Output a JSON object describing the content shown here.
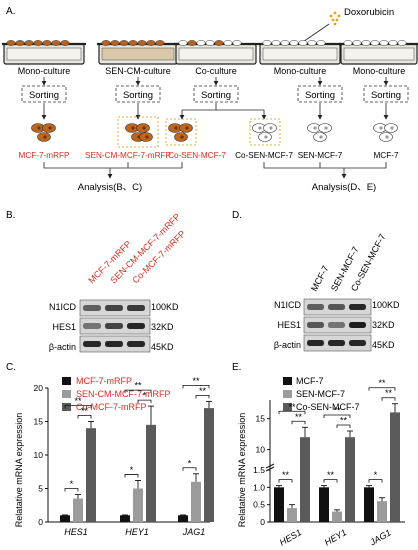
{
  "panelA": {
    "label": "A.",
    "drug": "Doxorubicin",
    "dishes": [
      "Mono-culture",
      "SEN-CM-culture",
      "Co-culture",
      "Mono-culture",
      "Mono-culture"
    ],
    "sorting": [
      "Sorting",
      "Sorting",
      "Sorting",
      "Sorting",
      "Sorting"
    ],
    "cells": [
      {
        "label": "MCF-7-mRFP",
        "red": true
      },
      {
        "label": "SEN-CM-MCF-7-mRFP",
        "red": true
      },
      {
        "label": "Co-SEN-MCF-7",
        "red": true
      },
      {
        "label": "Co-SEN-MCF-7",
        "red": false
      },
      {
        "label": "SEN-MCF-7",
        "red": false
      },
      {
        "label": "MCF-7",
        "red": false
      }
    ],
    "analysis_left": "Analysis(B、C)",
    "analysis_right": "Analysis(D、E)"
  },
  "panelB": {
    "label": "B.",
    "lanes": [
      "MCF-7-mRFP",
      "SEN-CM-MCF-7-mRFP",
      "Co-MCF-7-mRFP"
    ],
    "rows": [
      {
        "name": "N1ICD",
        "kd": "100KD",
        "intensity": [
          0.55,
          0.7,
          0.75
        ]
      },
      {
        "name": "HES1",
        "kd": "32KD",
        "intensity": [
          0.45,
          0.7,
          0.85
        ]
      },
      {
        "name": "β-actin",
        "kd": "45KD",
        "intensity": [
          0.85,
          0.85,
          0.85
        ]
      }
    ]
  },
  "panelD": {
    "label": "D.",
    "lanes": [
      "MCF-7",
      "SEN-MCF-7",
      "Co-SEN-MCF-7"
    ],
    "rows": [
      {
        "name": "N1ICD",
        "kd": "100KD",
        "intensity": [
          0.55,
          0.6,
          0.85
        ]
      },
      {
        "name": "HES1",
        "kd": "32KD",
        "intensity": [
          0.6,
          0.45,
          0.9
        ]
      },
      {
        "name": "β-actin",
        "kd": "45KD",
        "intensity": [
          0.85,
          0.85,
          0.85
        ]
      }
    ]
  },
  "panelC": {
    "label": "C.",
    "chart_data": {
      "type": "bar",
      "categories": [
        "HES1",
        "HEY1",
        "JAG1"
      ],
      "series": [
        {
          "name": "MCF-7-mRFP",
          "values": [
            1,
            1,
            1
          ],
          "errors": [
            0.05,
            0.05,
            0.05
          ],
          "color": "#111111"
        },
        {
          "name": "SEN-CM-MCF-7-mRFP",
          "values": [
            3.5,
            5,
            6
          ],
          "errors": [
            0.6,
            1.2,
            1.2
          ],
          "color": "#9b9b9b"
        },
        {
          "name": "Co-MCF-7-mRFP",
          "values": [
            14,
            14.5,
            17
          ],
          "errors": [
            1.0,
            2.8,
            1.0
          ],
          "color": "#5a5a5a"
        }
      ],
      "ylabel": "Relatative mRNA expression",
      "yticks": [
        "0",
        "5",
        "10",
        "15",
        "20"
      ],
      "ylim": [
        0,
        20
      ],
      "sig": [
        "*",
        "**",
        "**",
        "*",
        "*",
        "**",
        "*",
        "**",
        "**"
      ]
    }
  },
  "panelE": {
    "label": "E.",
    "chart_data": {
      "type": "bar",
      "categories": [
        "HES1",
        "HEY1",
        "JAG1"
      ],
      "series": [
        {
          "name": "MCF-7",
          "values": [
            1,
            1,
            1
          ],
          "errors": [
            0.05,
            0.05,
            0.05
          ],
          "color": "#111111"
        },
        {
          "name": "SEN-MCF-7",
          "values": [
            0.4,
            0.3,
            0.6
          ],
          "errors": [
            0.1,
            0.05,
            0.1
          ],
          "color": "#9b9b9b"
        },
        {
          "name": "Co-SEN-MCF-7",
          "values": [
            12,
            12,
            16
          ],
          "errors": [
            1.6,
            1.0,
            1.4
          ],
          "color": "#5a5a5a"
        }
      ],
      "ylabel": "Relatative mRNA expression",
      "yticks": [
        "0",
        "0.5",
        "1.0",
        "1.5",
        "10",
        "15"
      ],
      "sig": [
        "**",
        "**",
        "**",
        "**",
        "**",
        "**",
        "*",
        "**",
        "**"
      ]
    }
  }
}
